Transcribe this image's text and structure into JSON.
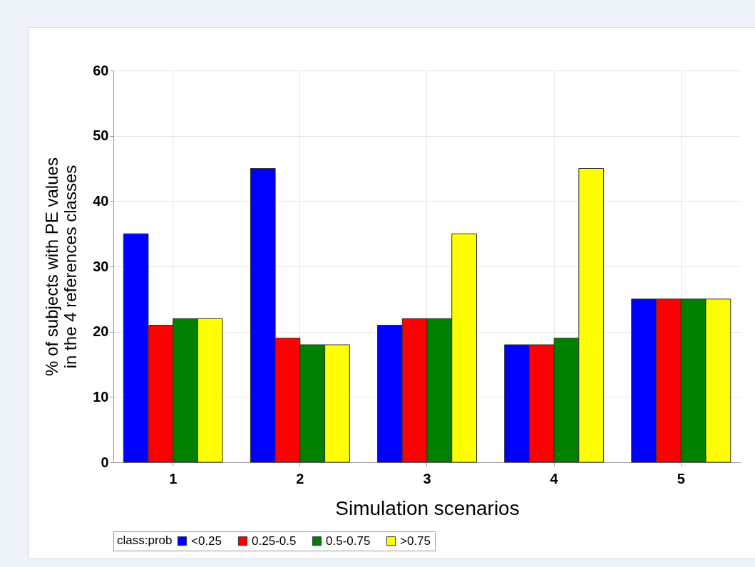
{
  "chart_data": {
    "type": "bar",
    "xlabel": "Simulation scenarios",
    "ylabel": "% of subjects with PE values in the 4 references classes",
    "legend_title": "class:prob",
    "categories": [
      "1",
      "2",
      "3",
      "4",
      "5"
    ],
    "series": [
      {
        "name": "<0.25",
        "color": "#0000ff",
        "values": [
          35,
          45,
          21,
          18,
          25
        ]
      },
      {
        "name": "0.25-0.5",
        "color": "#ff0000",
        "values": [
          21,
          19,
          22,
          18,
          25
        ]
      },
      {
        "name": "0.5-0.75",
        "color": "#008000",
        "values": [
          22,
          18,
          22,
          19,
          25
        ]
      },
      {
        "name": ">0.75",
        "color": "#ffff00",
        "values": [
          22,
          18,
          35,
          45,
          25
        ]
      }
    ],
    "ylim": [
      0,
      60
    ],
    "yticks": [
      0,
      10,
      20,
      30,
      40,
      50,
      60
    ],
    "grid": true,
    "legend": "bottom"
  }
}
